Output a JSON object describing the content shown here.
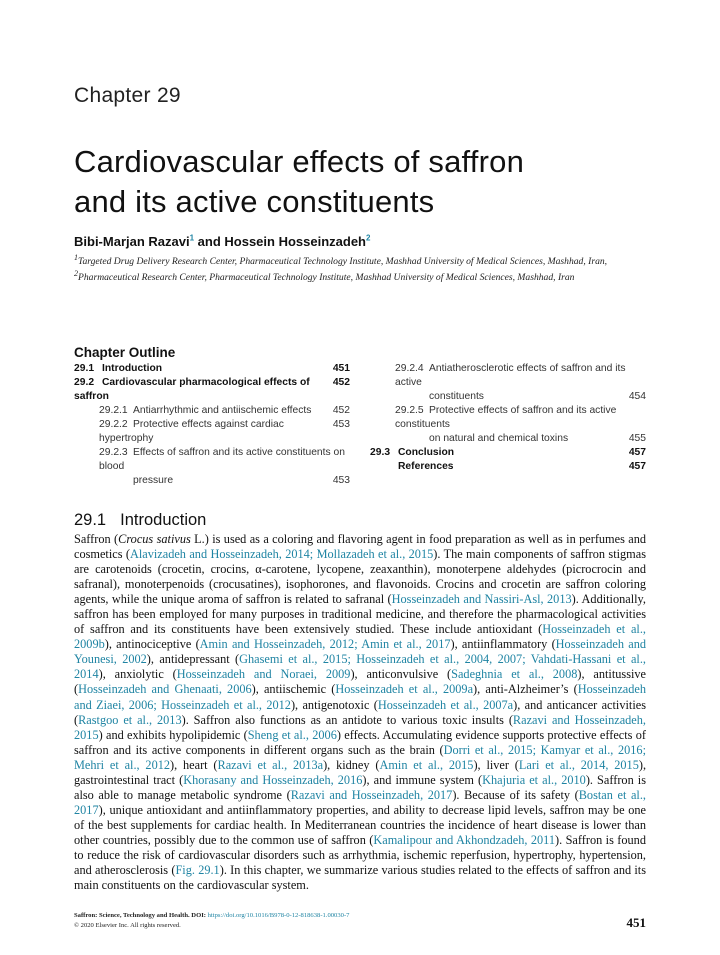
{
  "chapter_label": "Chapter 29",
  "title_lines": [
    "Cardiovascular effects of saffron",
    "and its active constituents"
  ],
  "authors": [
    {
      "name": "Bibi-Marjan Razavi",
      "sup": "1"
    },
    {
      "sep": " and "
    },
    {
      "name": "Hossein Hosseinzadeh",
      "sup": "2"
    }
  ],
  "author_sep": " and ",
  "affiliations": [
    {
      "sup": "1",
      "text": "Targeted Drug Delivery Research Center, Pharmaceutical Technology Institute, Mashhad University of Medical Sciences, Mashhad, Iran,"
    },
    {
      "sup": "2",
      "text": "Pharmaceutical Research Center, Pharmaceutical Technology Institute, Mashhad University of Medical Sciences, Mashhad, Iran"
    }
  ],
  "outline": {
    "heading": "Chapter Outline",
    "left": [
      {
        "num": "29.1",
        "label": "Introduction",
        "page": "451",
        "level": 1
      },
      {
        "num": "29.2",
        "label": "Cardiovascular pharmacological effects of saffron",
        "page": "452",
        "level": 1
      },
      {
        "num": "29.2.1",
        "label": "Antiarrhythmic and antiischemic effects",
        "page": "452",
        "level": 2
      },
      {
        "num": "29.2.2",
        "label": "Protective effects against cardiac hypertrophy",
        "page": "453",
        "level": 2
      },
      {
        "num": "29.2.3",
        "label": "Effects of saffron and its active constituents on blood",
        "cont": "pressure",
        "page": "453",
        "level": 2
      }
    ],
    "right": [
      {
        "num": "29.2.4",
        "label": "Antiatherosclerotic effects of saffron and its active",
        "cont": "constituents",
        "page": "454",
        "level": 2
      },
      {
        "num": "29.2.5",
        "label": "Protective effects of saffron and its active constituents",
        "cont": "on natural and chemical toxins",
        "page": "455",
        "level": 2
      },
      {
        "num": "29.3",
        "label": "Conclusion",
        "page": "457",
        "level": 1
      },
      {
        "num": "",
        "label": "References",
        "page": "457",
        "level": 1
      }
    ]
  },
  "section": {
    "num": "29.1",
    "title": "Introduction"
  },
  "paragraph": [
    {
      "t": "Saffron ("
    },
    {
      "t": "Crocus sativus",
      "i": true
    },
    {
      "t": " L.) is used as a coloring and flavoring agent in food preparation as well as in perfumes and cos­metics ("
    },
    {
      "t": "Alavizadeh and Hosseinzadeh, 2014; Mollazadeh et al., 2015",
      "link": true
    },
    {
      "t": "). The main components of saffron stigmas are car­otenoids (crocetin, crocins, α-carotene, lycopene, zeaxanthin), monoterpene aldehydes (picrocrocin and safranal), monoterpenoids (crocusatines), isophorones, and flavonoids. Crocins and crocetin are saffron coloring agents, while the unique aroma of saffron is related to safranal ("
    },
    {
      "t": "Hosseinzadeh and Nassiri-Asl, 2013",
      "link": true
    },
    {
      "t": "). Additionally, saffron has been employed for many purposes in traditional medicine, and therefore the pharmacological activities of saffron and its con­stituents have been extensively studied. These include antioxidant ("
    },
    {
      "t": "Hosseinzadeh et al., 2009b",
      "link": true
    },
    {
      "t": "), antinociceptive ("
    },
    {
      "t": "Amin and Hosseinzadeh, 2012; Amin et al., 2017",
      "link": true
    },
    {
      "t": "), antiinflammatory ("
    },
    {
      "t": "Hosseinzadeh and Younesi, 2002",
      "link": true
    },
    {
      "t": "), antidepressant ("
    },
    {
      "t": "Ghasemi et al., 2015; Hosseinzadeh et al., 2004, 2007; Vahdati-Hassani et al., 2014",
      "link": true
    },
    {
      "t": "), anxiolytic ("
    },
    {
      "t": "Hosseinzadeh and Noraei, 2009",
      "link": true
    },
    {
      "t": "), anticonvulsive ("
    },
    {
      "t": "Sadeghnia et al., 2008",
      "link": true
    },
    {
      "t": "), antitussive ("
    },
    {
      "t": "Hosseinzadeh and Ghenaati, 2006",
      "link": true
    },
    {
      "t": "), antiischemic ("
    },
    {
      "t": "Hosseinzadeh et al., 2009a",
      "link": true
    },
    {
      "t": "), anti-Alzheimer’s ("
    },
    {
      "t": "Hosseinzadeh and Ziaei, 2006; Hosseinzadeh et al., 2012",
      "link": true
    },
    {
      "t": "), antigenotoxic ("
    },
    {
      "t": "Hosseinzadeh et al., 2007a",
      "link": true
    },
    {
      "t": "), and anticancer activities ("
    },
    {
      "t": "Rastgoo et al., 2013",
      "link": true
    },
    {
      "t": "). Saffron also functions as an antidote to various toxic insults ("
    },
    {
      "t": "Razavi and Hosseinzadeh, 2015",
      "link": true
    },
    {
      "t": ") and exhibits hypolipidemic ("
    },
    {
      "t": "Sheng et al., 2006",
      "link": true
    },
    {
      "t": ") effects. Accumulating evidence supports protective effects of saffron and its active components in different organs such as the brain ("
    },
    {
      "t": "Dorri et al., 2015; Kamyar et al., 2016; Mehri et al., 2012",
      "link": true
    },
    {
      "t": "), heart ("
    },
    {
      "t": "Razavi et al., 2013a",
      "link": true
    },
    {
      "t": "), kidney ("
    },
    {
      "t": "Amin et al., 2015",
      "link": true
    },
    {
      "t": "), liver ("
    },
    {
      "t": "Lari et al., 2014, 2015",
      "link": true
    },
    {
      "t": "), gastrointestinal tract ("
    },
    {
      "t": "Khorasany and Hosseinzadeh, 2016",
      "link": true
    },
    {
      "t": "), and immune system ("
    },
    {
      "t": "Khajuria et al., 2010",
      "link": true
    },
    {
      "t": "). Saffron is also able to manage metabolic syndrome ("
    },
    {
      "t": "Razavi and Hosseinzadeh, 2017",
      "link": true
    },
    {
      "t": "). Because of its safety ("
    },
    {
      "t": "Bostan et al., 2017",
      "link": true
    },
    {
      "t": "), unique antioxidant and antiinflammatory properties, and ability to decrease lipid levels, saffron may be one of the best supplements for cardiac health. In Mediterranean countries the incidence of heart disease is lower than other countries, possibly due to the common use of saffron ("
    },
    {
      "t": "Kamalipour and Akhondzadeh, 2011",
      "link": true
    },
    {
      "t": "). Saffron is found to reduce the risk of cardiovascular disorders such as arrhythmia, ischemic reperfusion, hypertrophy, hypertension, and atherosclerosis ("
    },
    {
      "t": "Fig. 29.1",
      "link": true
    },
    {
      "t": "). In this chapter, we summarize various studies related to the effects of saffron and its main constituents on the cardiovascular system."
    }
  ],
  "footer": {
    "book": "Saffron: Science, Technology and Health.",
    "doi_label": " DOI: ",
    "doi": "https://doi.org/10.1016/B978-0-12-818638-1.00030-7",
    "copyright": "© 2020 Elsevier Inc. All rights reserved.",
    "page": "451"
  },
  "colors": {
    "link": "#1f84a3",
    "text": "#111111"
  }
}
